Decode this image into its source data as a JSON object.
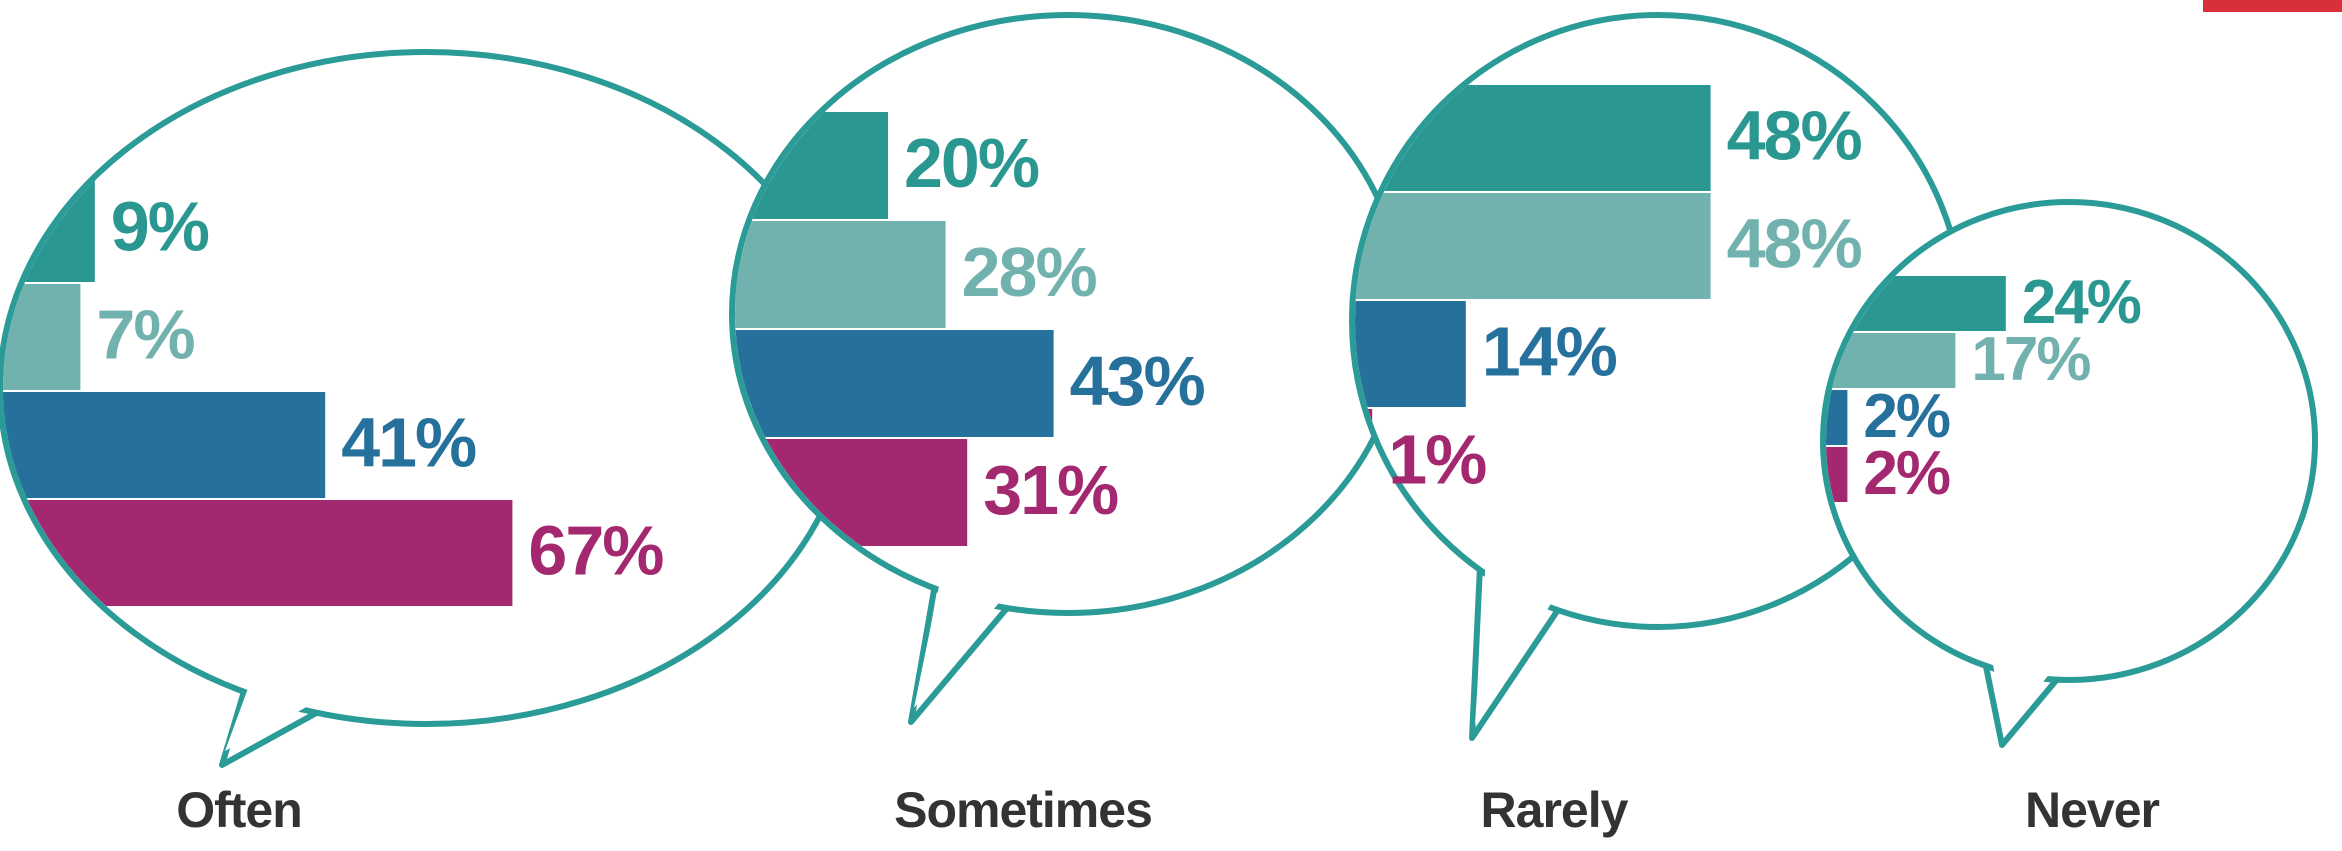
{
  "chart_data": {
    "type": "bar",
    "orientation": "horizontal",
    "categories": [
      "Often",
      "Sometimes",
      "Rarely",
      "Never"
    ],
    "series": [
      {
        "color": "#2a9891",
        "values": [
          9,
          20,
          48,
          24
        ],
        "value_labels": [
          "9%",
          "20%",
          "48%",
          "24%"
        ]
      },
      {
        "color": "#72b2ae",
        "values": [
          7,
          28,
          48,
          17
        ],
        "value_labels": [
          "7%",
          "28%",
          "48%",
          "17%"
        ]
      },
      {
        "color": "#26709c",
        "values": [
          41,
          43,
          14,
          2
        ],
        "value_labels": [
          "41%",
          "43%",
          "14%",
          "2%"
        ]
      },
      {
        "color": "#a3286f",
        "values": [
          67,
          31,
          1,
          2
        ],
        "value_labels": [
          "67%",
          "31%",
          "1%",
          "2%"
        ]
      }
    ]
  }
}
